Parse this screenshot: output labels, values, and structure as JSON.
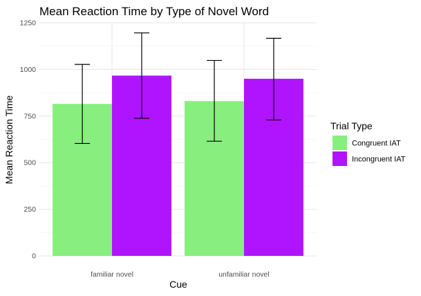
{
  "chart_data": {
    "type": "bar",
    "title": "Mean Reaction Time by Type of Novel Word",
    "xlabel": "Cue",
    "ylabel": "Mean Reaction Time",
    "categories": [
      "familiar novel",
      "unfamiliar novel"
    ],
    "series": [
      {
        "name": "Congruent IAT",
        "color": "#88ee7e",
        "values": [
          815,
          830
        ],
        "error_low": [
          603,
          615
        ],
        "error_high": [
          1027,
          1048
        ]
      },
      {
        "name": "Incongruent IAT",
        "color": "#b014ff",
        "values": [
          967,
          950
        ],
        "error_low": [
          738,
          729
        ],
        "error_high": [
          1196,
          1167
        ]
      }
    ],
    "ylim": [
      0,
      1250
    ],
    "yticks": [
      0,
      250,
      500,
      750,
      1000,
      1250
    ],
    "grid": true,
    "legend": {
      "title": "Trial Type",
      "position": "right"
    }
  }
}
